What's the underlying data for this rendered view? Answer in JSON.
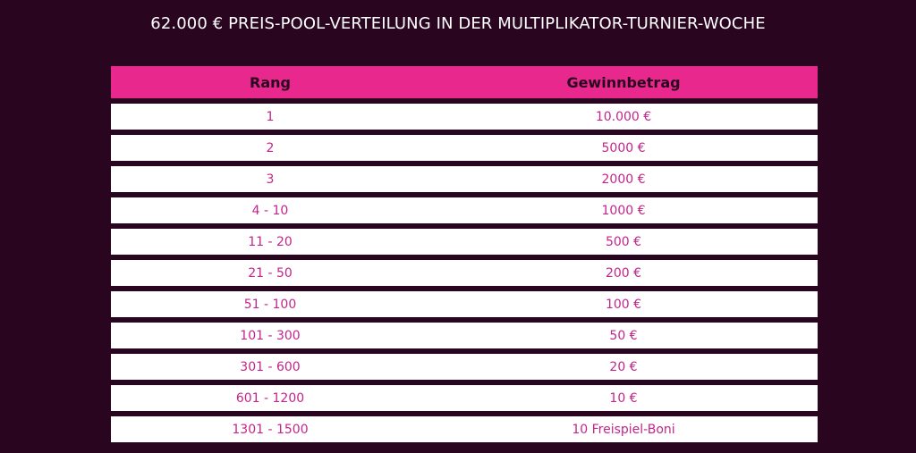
{
  "title": "62.000 € PREIS-POOL-VERTEILUNG IN DER MULTIPLIKATOR-TURNIER-WOCHE",
  "colors": {
    "background": "#2a0520",
    "header_bg": "#e8288c",
    "row_bg": "#ffffff",
    "row_text": "#c2268a"
  },
  "table": {
    "headers": [
      "Rang",
      "Gewinnbetrag"
    ],
    "rows": [
      [
        "1",
        "10.000 €"
      ],
      [
        "2",
        "5000 €"
      ],
      [
        "3",
        "2000 €"
      ],
      [
        "4 - 10",
        "1000 €"
      ],
      [
        "11 - 20",
        "500 €"
      ],
      [
        "21 - 50",
        "200 €"
      ],
      [
        "51 - 100",
        "100 €"
      ],
      [
        "101 - 300",
        "50 €"
      ],
      [
        "301 - 600",
        "20 €"
      ],
      [
        "601 - 1200",
        "10 €"
      ],
      [
        "1301 - 1500",
        "10 Freispiel-Boni"
      ]
    ]
  }
}
